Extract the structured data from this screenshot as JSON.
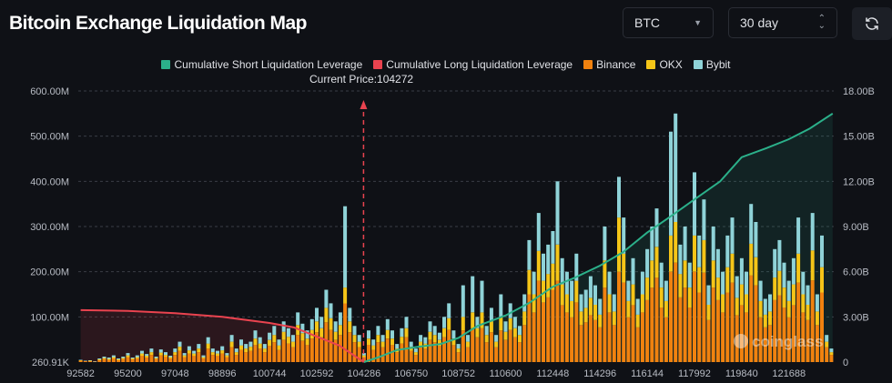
{
  "header": {
    "title": "Bitcoin Exchange Liquidation Map",
    "coin_select": "BTC",
    "range_select": "30 day",
    "refresh_icon": "refresh-icon"
  },
  "colors": {
    "short": "#2bb08a",
    "long": "#e9434f",
    "binance": "#f0820f",
    "okx": "#f5c518",
    "bybit": "#8fd3d8",
    "background": "#0f1116"
  },
  "watermark": "coinglass",
  "chart_data": {
    "type": "bar",
    "title": "",
    "legend": [
      "Cumulative Short Liquidation Leverage",
      "Cumulative Long Liquidation Leverage",
      "Binance",
      "OKX",
      "Bybit"
    ],
    "legend_position": "top",
    "annotation": "Current Price:104272",
    "current_price": 104272,
    "x_ticks": [
      "92582",
      "95200",
      "97048",
      "98896",
      "100744",
      "102592",
      "104286",
      "106750",
      "108752",
      "110600",
      "112448",
      "114296",
      "116144",
      "117992",
      "119840",
      "121688"
    ],
    "y_left_ticks": [
      "260.91K",
      "100.00M",
      "200.00M",
      "300.00M",
      "400.00M",
      "500.00M",
      "600.00M"
    ],
    "y_right_ticks": [
      "0",
      "3.00B",
      "6.00B",
      "9.00B",
      "12.00B",
      "15.00B",
      "18.00B"
    ],
    "ylim_left": [
      0,
      600
    ],
    "ylim_right": [
      0,
      18
    ],
    "grid": true,
    "series": [
      {
        "name": "Binance",
        "unit": "M",
        "values": [
          3,
          2,
          2,
          1,
          4,
          7,
          5,
          8,
          4,
          7,
          11,
          6,
          8,
          14,
          10,
          16,
          7,
          15,
          12,
          8,
          16,
          25,
          11,
          19,
          14,
          22,
          8,
          30,
          16,
          14,
          19,
          11,
          33,
          16,
          27,
          22,
          25,
          38,
          30,
          22,
          36,
          44,
          27,
          49,
          41,
          33,
          60,
          47,
          38,
          52,
          66,
          55,
          88,
          71,
          49,
          60,
          130,
          66,
          44,
          33,
          11,
          38,
          27,
          44,
          33,
          52,
          38,
          22,
          41,
          55,
          25,
          16,
          33,
          30,
          49,
          44,
          36,
          55,
          71,
          38,
          22,
          70,
          33,
          75,
          55,
          75,
          44,
          66,
          33,
          70,
          49,
          71,
          55,
          44,
          82,
          150,
          110,
          180,
          132,
          143,
          160,
          180,
          126,
          110,
          99,
          132,
          82,
          88,
          104,
          93,
          77,
          165,
          110,
          82,
          200,
          176,
          99,
          126,
          77,
          110,
          137,
          165,
          187,
          121,
          99,
          200,
          220,
          143,
          165,
          121,
          200,
          154,
          198,
          93,
          165,
          137,
          110,
          154,
          176,
          104,
          126,
          110,
          192,
          170,
          99,
          77,
          82,
          137,
          148,
          121,
          99,
          126,
          176,
          110,
          93,
          181,
          82,
          154,
          33,
          16
        ]
      },
      {
        "name": "OKX",
        "unit": "M",
        "values": [
          1,
          0,
          1,
          0,
          2,
          2,
          2,
          3,
          2,
          2,
          4,
          2,
          3,
          5,
          4,
          6,
          2,
          6,
          4,
          3,
          6,
          9,
          4,
          7,
          5,
          8,
          3,
          11,
          6,
          5,
          7,
          4,
          12,
          6,
          10,
          8,
          9,
          14,
          11,
          8,
          13,
          16,
          10,
          18,
          15,
          12,
          22,
          17,
          14,
          19,
          24,
          20,
          32,
          26,
          18,
          22,
          35,
          24,
          16,
          12,
          4,
          14,
          10,
          16,
          12,
          19,
          14,
          8,
          15,
          20,
          9,
          6,
          12,
          11,
          18,
          16,
          13,
          20,
          26,
          14,
          8,
          30,
          12,
          35,
          20,
          35,
          16,
          24,
          12,
          30,
          18,
          26,
          20,
          16,
          30,
          54,
          40,
          66,
          48,
          52,
          58,
          80,
          46,
          40,
          36,
          48,
          30,
          32,
          38,
          34,
          28,
          60,
          40,
          30,
          120,
          64,
          36,
          46,
          28,
          40,
          50,
          60,
          68,
          44,
          36,
          80,
          90,
          52,
          60,
          44,
          80,
          56,
          72,
          34,
          60,
          50,
          40,
          56,
          64,
          38,
          46,
          40,
          70,
          62,
          36,
          28,
          30,
          50,
          54,
          44,
          36,
          46,
          64,
          40,
          34,
          66,
          30,
          56,
          12,
          6
        ]
      },
      {
        "name": "Bybit",
        "unit": "M",
        "values": [
          1,
          1,
          1,
          1,
          2,
          3,
          3,
          4,
          2,
          3,
          5,
          2,
          4,
          6,
          4,
          8,
          3,
          7,
          6,
          3,
          8,
          11,
          5,
          9,
          6,
          10,
          4,
          14,
          8,
          6,
          9,
          5,
          15,
          8,
          13,
          10,
          11,
          18,
          14,
          10,
          16,
          20,
          13,
          23,
          19,
          15,
          28,
          21,
          18,
          24,
          30,
          25,
          40,
          33,
          23,
          28,
          180,
          30,
          20,
          15,
          5,
          18,
          13,
          20,
          15,
          24,
          18,
          10,
          19,
          25,
          11,
          8,
          15,
          14,
          23,
          20,
          16,
          25,
          33,
          18,
          10,
          70,
          15,
          80,
          25,
          70,
          20,
          30,
          15,
          50,
          23,
          33,
          25,
          20,
          38,
          66,
          50,
          84,
          60,
          65,
          72,
          140,
          58,
          50,
          45,
          60,
          38,
          40,
          48,
          43,
          35,
          75,
          50,
          38,
          90,
          80,
          45,
          58,
          35,
          50,
          63,
          75,
          85,
          55,
          45,
          230,
          240,
          65,
          75,
          55,
          140,
          70,
          90,
          43,
          75,
          63,
          50,
          70,
          80,
          48,
          58,
          50,
          88,
          78,
          45,
          35,
          38,
          63,
          68,
          55,
          45,
          58,
          80,
          50,
          43,
          83,
          38,
          70,
          15,
          8
        ]
      }
    ],
    "lines": [
      {
        "name": "Cumulative Short Liquidation Leverage",
        "unit": "B",
        "points": [
          [
            104286,
            0
          ],
          [
            105000,
            0.3
          ],
          [
            106000,
            0.8
          ],
          [
            107000,
            1.0
          ],
          [
            108000,
            1.2
          ],
          [
            108752,
            1.6
          ],
          [
            109500,
            2.4
          ],
          [
            110600,
            3.1
          ],
          [
            111500,
            3.9
          ],
          [
            112448,
            5.0
          ],
          [
            113300,
            5.6
          ],
          [
            114296,
            6.4
          ],
          [
            115200,
            7.3
          ],
          [
            116144,
            8.6
          ],
          [
            117000,
            9.6
          ],
          [
            117992,
            10.8
          ],
          [
            119000,
            12.0
          ],
          [
            119840,
            13.6
          ],
          [
            120800,
            14.2
          ],
          [
            121688,
            14.8
          ],
          [
            122500,
            15.5
          ],
          [
            123400,
            16.5
          ]
        ]
      },
      {
        "name": "Cumulative Long Liquidation Leverage",
        "unit": "B",
        "points": [
          [
            92582,
            3.45
          ],
          [
            95200,
            3.4
          ],
          [
            97048,
            3.25
          ],
          [
            98896,
            3.0
          ],
          [
            100744,
            2.6
          ],
          [
            101700,
            2.3
          ],
          [
            102592,
            1.7
          ],
          [
            103400,
            1.1
          ],
          [
            104286,
            0
          ]
        ]
      }
    ]
  }
}
